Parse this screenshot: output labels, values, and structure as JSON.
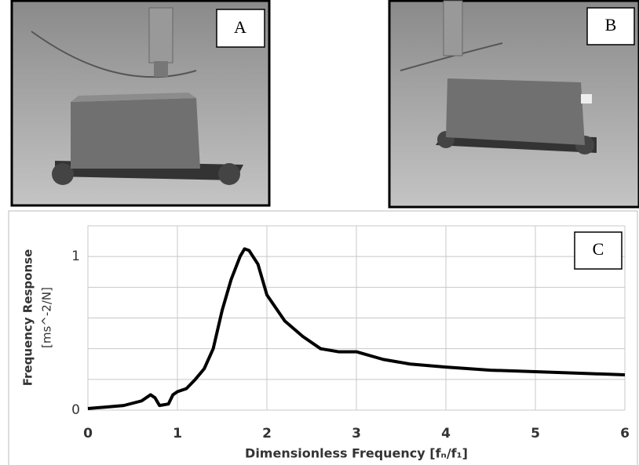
{
  "panels": [
    {
      "label": "A"
    },
    {
      "label": "B"
    }
  ],
  "chart_data": {
    "type": "line",
    "panel_label": "C",
    "x_label": "Dimensionless Frequency [fₙ/f₁]",
    "y_label": [
      "Frequency Response",
      "[ms^-2/N]"
    ],
    "x": [
      0,
      0.2,
      0.4,
      0.6,
      0.7,
      0.75,
      0.8,
      0.9,
      0.95,
      1.0,
      1.1,
      1.2,
      1.3,
      1.4,
      1.5,
      1.6,
      1.7,
      1.75,
      1.8,
      1.9,
      2.0,
      2.2,
      2.4,
      2.6,
      2.8,
      3.0,
      3.3,
      3.6,
      4.0,
      4.5,
      5.0,
      5.5,
      6.0
    ],
    "series": [
      {
        "color": "#000000",
        "values": [
          0.01,
          0.02,
          0.03,
          0.06,
          0.1,
          0.08,
          0.03,
          0.04,
          0.1,
          0.12,
          0.14,
          0.2,
          0.27,
          0.4,
          0.65,
          0.85,
          1.0,
          1.05,
          1.04,
          0.95,
          0.75,
          0.58,
          0.48,
          0.4,
          0.38,
          0.38,
          0.33,
          0.3,
          0.28,
          0.26,
          0.25,
          0.24,
          0.23
        ]
      }
    ],
    "xlim": [
      0,
      6
    ],
    "xticks": [
      0,
      1,
      2,
      3,
      4,
      5,
      6
    ],
    "ylim": [
      0,
      1.2
    ],
    "yticks": [
      0,
      1
    ],
    "ygrid": [
      0,
      0.2,
      0.4,
      0.6,
      0.8,
      1,
      1.2
    ],
    "grid": true
  }
}
